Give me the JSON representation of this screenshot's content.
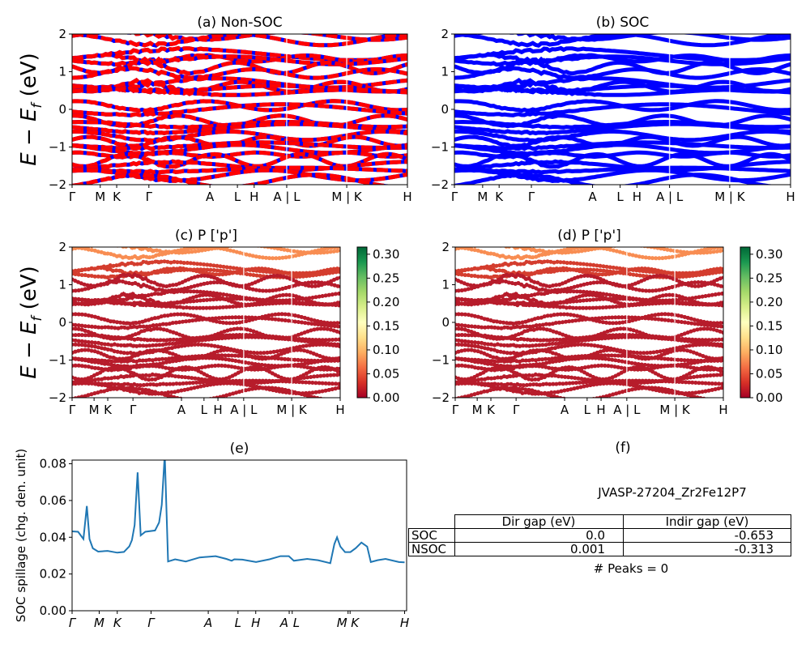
{
  "colors": {
    "non_soc_primary": "#ff0000",
    "non_soc_secondary": "#0000ff",
    "soc": "#0000ff",
    "spillage_line": "#1f77b4",
    "colormap": "RdYlGn"
  },
  "band_ylabel": {
    "main": "E − E",
    "sub": "f",
    "unit": " (eV)"
  },
  "kpath_labels": [
    "Γ",
    "M",
    "K",
    "Γ",
    "A",
    "L",
    "H",
    "A | L",
    "M | K",
    "H"
  ],
  "chart_data": [
    {
      "id": "a",
      "type": "line",
      "title": "(a) Non-SOC",
      "ylim": [
        -2,
        2
      ],
      "yticks": [
        -2,
        -1,
        0,
        1,
        2
      ],
      "xticks": [
        "Γ",
        "M",
        "K",
        "Γ",
        "A",
        "L",
        "H",
        "A | L",
        "M | K",
        "H"
      ],
      "xtick_positions": [
        0,
        8.4,
        13.3,
        22.9,
        41.1,
        49.3,
        54.3,
        64.0,
        81.9,
        100
      ],
      "band_levels_eV": [
        1.95,
        1.85,
        1.45,
        1.35,
        1.3,
        1.1,
        0.95,
        0.7,
        0.6,
        0.55,
        0.45,
        0.1,
        0.0,
        -0.3,
        -0.4,
        -0.5,
        -0.7,
        -0.85,
        -0.95,
        -1.05,
        -1.2,
        -1.35,
        -1.5,
        -1.6,
        -1.75,
        -1.9
      ],
      "coloring": "red/blue alternating"
    },
    {
      "id": "b",
      "type": "line",
      "title": "(b) SOC",
      "ylim": [
        -2,
        2
      ],
      "yticks": [
        -2,
        -1,
        0,
        1,
        2
      ],
      "xticks": [
        "Γ",
        "M",
        "K",
        "Γ",
        "A",
        "L",
        "H",
        "A | L",
        "M | K",
        "H"
      ],
      "xtick_positions": [
        0,
        8.4,
        13.3,
        22.9,
        41.1,
        49.3,
        54.3,
        64.0,
        81.9,
        100
      ],
      "band_levels_eV": [
        1.95,
        1.85,
        1.45,
        1.35,
        1.3,
        1.1,
        0.95,
        0.7,
        0.6,
        0.55,
        0.45,
        0.1,
        0.0,
        -0.3,
        -0.4,
        -0.5,
        -0.7,
        -0.85,
        -0.95,
        -1.05,
        -1.2,
        -1.35,
        -1.5,
        -1.6,
        -1.75,
        -1.9
      ],
      "coloring": "blue"
    },
    {
      "id": "c",
      "type": "scatter",
      "title": "(c)  P ['p']",
      "ylim": [
        -2,
        2
      ],
      "yticks": [
        -2,
        -1,
        0,
        1,
        2
      ],
      "xticks": [
        "Γ",
        "M",
        "K",
        "Γ",
        "A",
        "L",
        "H",
        "A | L",
        "M | K",
        "H"
      ],
      "xtick_positions": [
        0,
        8.2,
        13.3,
        22.7,
        40.8,
        49.2,
        54.4,
        64.0,
        81.9,
        100
      ],
      "band_levels_eV": [
        1.95,
        1.85,
        1.45,
        1.35,
        1.3,
        1.1,
        0.95,
        0.7,
        0.6,
        0.55,
        0.45,
        0.1,
        0.0,
        -0.3,
        -0.4,
        -0.5,
        -0.7,
        -0.85,
        -0.95,
        -1.05,
        -1.2,
        -1.35,
        -1.5,
        -1.6,
        -1.75,
        -1.9
      ],
      "colorbar": {
        "range": [
          0,
          0.315
        ],
        "ticks": [
          "0.00",
          "0.05",
          "0.10",
          "0.15",
          "0.20",
          "0.25",
          "0.30"
        ]
      }
    },
    {
      "id": "d",
      "type": "scatter",
      "title": "(d) P ['p']",
      "ylim": [
        -2,
        2
      ],
      "yticks": [
        -2,
        -1,
        0,
        1,
        2
      ],
      "xticks": [
        "Γ",
        "M",
        "K",
        "Γ",
        "A",
        "L",
        "H",
        "A | L",
        "M | K",
        "H"
      ],
      "xtick_positions": [
        0,
        8.2,
        13.3,
        22.7,
        40.8,
        49.2,
        54.4,
        64.0,
        81.9,
        100
      ],
      "band_levels_eV": [
        1.95,
        1.85,
        1.45,
        1.35,
        1.3,
        1.1,
        0.95,
        0.7,
        0.6,
        0.55,
        0.45,
        0.1,
        0.0,
        -0.3,
        -0.4,
        -0.5,
        -0.7,
        -0.85,
        -0.95,
        -1.05,
        -1.2,
        -1.35,
        -1.5,
        -1.6,
        -1.75,
        -1.9
      ],
      "colorbar": {
        "range": [
          0,
          0.315
        ],
        "ticks": [
          "0.00",
          "0.05",
          "0.10",
          "0.15",
          "0.20",
          "0.25",
          "0.30"
        ]
      }
    },
    {
      "id": "e",
      "type": "line",
      "title": "(e)",
      "ylabel": "SOC spillage (chg. den. unit)",
      "ylim": [
        0,
        0.082
      ],
      "yticks": [
        "0.00",
        "0.02",
        "0.04",
        "0.06",
        "0.08"
      ],
      "xticks": [
        "Γ",
        "M",
        "K",
        "Γ",
        "A",
        "L",
        "H",
        "A",
        "L",
        "M",
        "K",
        "H"
      ],
      "xtick_positions": [
        0,
        8.1,
        13.5,
        23.6,
        40.7,
        49.6,
        54.9,
        64.9,
        65.8,
        82.5,
        83.1,
        99.4
      ],
      "x": [
        0,
        1.8,
        3.4,
        4.4,
        5.2,
        6.2,
        7.8,
        10.6,
        13.5,
        15.5,
        17.1,
        17.9,
        18.7,
        19.6,
        20.5,
        21.9,
        24.8,
        26.0,
        26.8,
        27.7,
        28.7,
        30.8,
        34.0,
        38.1,
        42.9,
        46.1,
        47.7,
        48.5,
        50.9,
        55.0,
        59.0,
        62.3,
        64.8,
        66.3,
        70.3,
        73.5,
        77.2,
        78.4,
        79.2,
        80.2,
        81.6,
        83.2,
        84.8,
        86.5,
        88.2,
        89.3,
        91.3,
        93.7,
        97.7,
        99.4
      ],
      "y": [
        0.0432,
        0.043,
        0.039,
        0.057,
        0.039,
        0.034,
        0.0322,
        0.0326,
        0.0316,
        0.032,
        0.035,
        0.0385,
        0.0466,
        0.0753,
        0.041,
        0.043,
        0.0437,
        0.048,
        0.0576,
        0.085,
        0.0268,
        0.028,
        0.0268,
        0.029,
        0.0297,
        0.0282,
        0.0272,
        0.028,
        0.0278,
        0.0265,
        0.028,
        0.0297,
        0.0297,
        0.0272,
        0.0282,
        0.0275,
        0.0259,
        0.0363,
        0.04,
        0.0349,
        0.0319,
        0.0319,
        0.0341,
        0.0371,
        0.0349,
        0.0265,
        0.0275,
        0.0282,
        0.0265,
        0.0263
      ]
    },
    {
      "id": "f",
      "type": "table",
      "title": "(f)",
      "subtitle": "JVASP-27204_Zr2Fe12P7",
      "columns": [
        "Dir gap (eV)",
        "Indir gap (eV)"
      ],
      "rows": [
        {
          "label": "SOC",
          "values": [
            "0.0",
            "-0.653"
          ]
        },
        {
          "label": "NSOC",
          "values": [
            "0.001",
            "-0.313"
          ]
        }
      ],
      "footer": "# Peaks = 0"
    }
  ]
}
